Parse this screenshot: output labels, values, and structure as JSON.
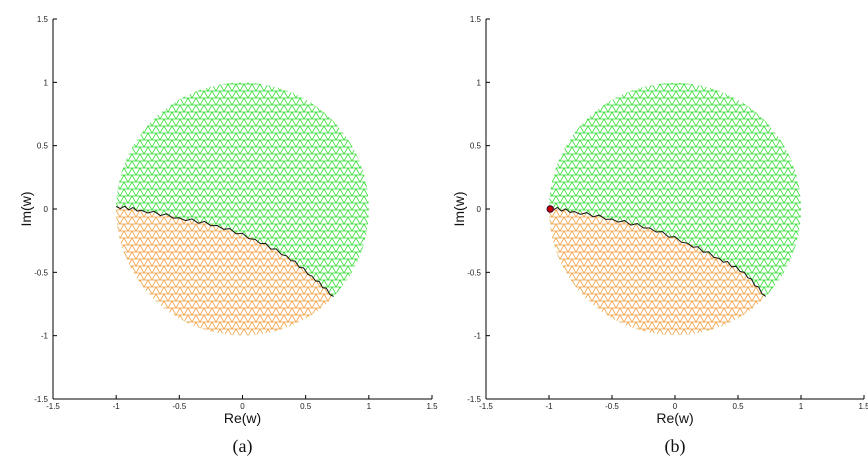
{
  "colors": {
    "upper_region": "#33dd33",
    "lower_region": "#f0a040",
    "boundary": "#111111",
    "marker": "#cc0000",
    "axes": "#000000"
  },
  "chart_data": [
    {
      "type": "scatter",
      "caption": "(a)",
      "xlabel": "Re(w)",
      "ylabel": "Im(w)",
      "xlim": [
        -1.5,
        1.5
      ],
      "ylim": [
        -1.5,
        1.5
      ],
      "xticks": [
        -1.5,
        -1,
        -0.5,
        0,
        0.5,
        1,
        1.5
      ],
      "yticks": [
        -1.5,
        -1,
        -0.5,
        0,
        0.5,
        1,
        1.5
      ],
      "xtick_labels": [
        "-1.5",
        "-1",
        "-0.5",
        "0",
        "0.5",
        "1",
        "1.5"
      ],
      "ytick_labels": [
        "-1.5",
        "-1",
        "-0.5",
        "0",
        "0.5",
        "1",
        "1.5"
      ],
      "disk": {
        "center": [
          0,
          0
        ],
        "radius": 1
      },
      "boundary_curve": [
        [
          -1.0,
          0.02
        ],
        [
          -0.8,
          -0.01
        ],
        [
          -0.5,
          -0.07
        ],
        [
          -0.2,
          -0.13
        ],
        [
          0.1,
          -0.24
        ],
        [
          0.35,
          -0.37
        ],
        [
          0.55,
          -0.53
        ],
        [
          0.72,
          -0.69
        ]
      ],
      "regions": [
        {
          "color": "upper_region",
          "side": "above boundary"
        },
        {
          "color": "lower_region",
          "side": "below boundary"
        }
      ],
      "marker": null
    },
    {
      "type": "scatter",
      "caption": "(b)",
      "xlabel": "Re(w)",
      "ylabel": "Im(w)",
      "xlim": [
        -1.5,
        1.5
      ],
      "ylim": [
        -1.5,
        1.5
      ],
      "xticks": [
        -1.5,
        -1,
        -0.5,
        0,
        0.5,
        1,
        1.5
      ],
      "yticks": [
        -1.5,
        -1,
        -0.5,
        0,
        0.5,
        1,
        1.5
      ],
      "xtick_labels": [
        "-1.5",
        "-1",
        "-0.5",
        "0",
        "0.5",
        "1",
        "1.5"
      ],
      "ytick_labels": [
        "-1.5",
        "-1",
        "-0.5",
        "0",
        "0.5",
        "1",
        "1.5"
      ],
      "disk": {
        "center": [
          0,
          0
        ],
        "radius": 1
      },
      "boundary_curve": [
        [
          -1.0,
          0.01
        ],
        [
          -0.8,
          -0.02
        ],
        [
          -0.5,
          -0.08
        ],
        [
          -0.2,
          -0.15
        ],
        [
          0.1,
          -0.27
        ],
        [
          0.35,
          -0.39
        ],
        [
          0.55,
          -0.5
        ],
        [
          0.72,
          -0.69
        ]
      ],
      "regions": [
        {
          "color": "upper_region",
          "side": "above boundary"
        },
        {
          "color": "lower_region",
          "side": "below boundary"
        }
      ],
      "marker": [
        -0.99,
        0.0
      ]
    }
  ]
}
